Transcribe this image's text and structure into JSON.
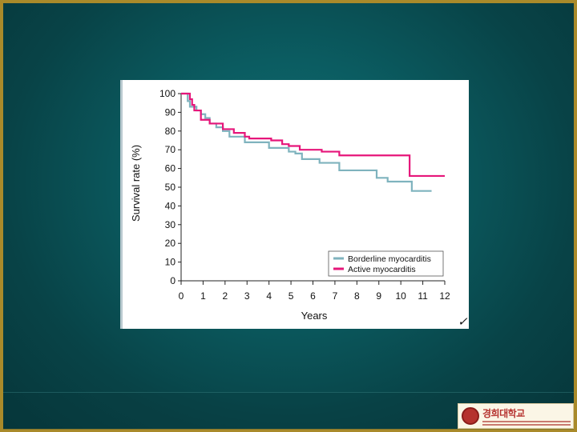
{
  "chart_data": {
    "type": "line",
    "step": true,
    "xlabel": "Years",
    "ylabel": "Survival rate (%)",
    "xlim": [
      0,
      12
    ],
    "ylim": [
      0,
      100
    ],
    "xticks": [
      0,
      1,
      2,
      3,
      4,
      5,
      6,
      7,
      8,
      9,
      10,
      11,
      12
    ],
    "yticks": [
      0,
      10,
      20,
      30,
      40,
      50,
      60,
      70,
      80,
      90,
      100
    ],
    "grid": false,
    "legend_position": "bottom-right",
    "series": [
      {
        "name": "Borderline myocarditis",
        "color": "#7fb3be",
        "x": [
          0,
          0.3,
          0.4,
          0.7,
          0.9,
          1.1,
          1.3,
          1.6,
          1.9,
          2.2,
          2.9,
          4.0,
          4.9,
          5.2,
          5.5,
          6.3,
          7.2,
          8.9,
          9.4,
          10.5,
          11.4
        ],
        "y": [
          100,
          96,
          93,
          91,
          89,
          87,
          84,
          82,
          80,
          77,
          74,
          71,
          69,
          68,
          65,
          63,
          59,
          55,
          53,
          48,
          48
        ]
      },
      {
        "name": "Active myocarditis",
        "color": "#e6167a",
        "x": [
          0,
          0.4,
          0.5,
          0.6,
          0.9,
          1.3,
          1.9,
          2.4,
          2.9,
          3.1,
          4.1,
          4.6,
          4.9,
          5.4,
          6.4,
          7.2,
          10.4,
          12
        ],
        "y": [
          100,
          97,
          94,
          91,
          86,
          84,
          81,
          79,
          77,
          76,
          75,
          73,
          72,
          70,
          69,
          67,
          56,
          56
        ]
      }
    ]
  },
  "logo": {
    "name": "경희대학교"
  }
}
